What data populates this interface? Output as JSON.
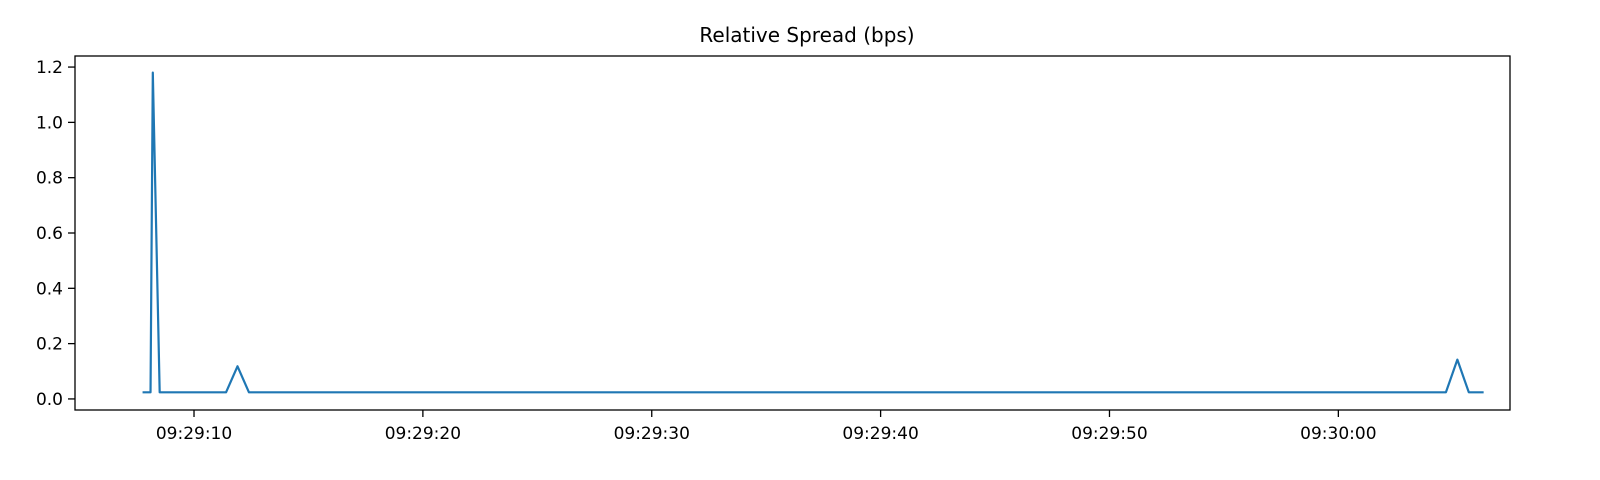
{
  "chart_data": {
    "type": "line",
    "title": "Relative Spread (bps)",
    "xlabel": "",
    "ylabel": "",
    "x_axis_kind": "time",
    "x_tick_labels": [
      "09:29:10",
      "09:29:20",
      "09:29:30",
      "09:29:40",
      "09:29:50",
      "09:30:00"
    ],
    "y_tick_labels": [
      "0.0",
      "0.2",
      "0.4",
      "0.6",
      "0.8",
      "1.0",
      "1.2"
    ],
    "y_ticks": [
      0.0,
      0.2,
      0.4,
      0.6,
      0.8,
      1.0,
      1.2
    ],
    "ylim": [
      -0.04,
      1.24
    ],
    "xlim": [
      "09:29:04.8",
      "09:30:07.5"
    ],
    "grid": false,
    "legend": "none",
    "series": [
      {
        "color": "#1f77b4",
        "points": [
          [
            "09:29:07.8",
            0.024
          ],
          [
            "09:29:08.1",
            0.024
          ],
          [
            "09:29:08.2",
            1.18
          ],
          [
            "09:29:08.5",
            0.024
          ],
          [
            "09:29:11.4",
            0.024
          ],
          [
            "09:29:11.9",
            0.118
          ],
          [
            "09:29:12.4",
            0.024
          ],
          [
            "09:30:04.7",
            0.024
          ],
          [
            "09:30:05.2",
            0.142
          ],
          [
            "09:30:05.7",
            0.024
          ],
          [
            "09:30:06.3",
            0.024
          ]
        ]
      }
    ]
  }
}
